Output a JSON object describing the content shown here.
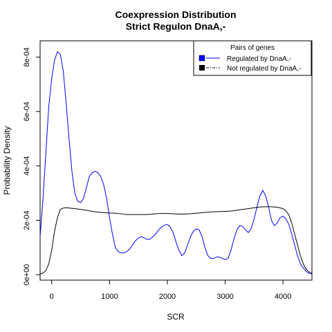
{
  "chart_data": {
    "type": "line",
    "title": "Coexpression Distribution",
    "subtitle": "Strict Regulon DnaA,-",
    "xlabel": "SCR",
    "ylabel": "Probability Density",
    "xlim": [
      -200,
      4500
    ],
    "ylim": [
      -2e-05,
      0.00086
    ],
    "x_ticks": [
      0,
      1000,
      2000,
      3000,
      4000
    ],
    "x_tick_labels": [
      "0",
      "1000",
      "2000",
      "3000",
      "4000"
    ],
    "y_ticks": [
      0,
      0.0002,
      0.0004,
      0.0006,
      0.0008
    ],
    "y_tick_labels": [
      "0e+00",
      "2e-04",
      "4e-04",
      "6e-04",
      "8e-04"
    ],
    "grid": false,
    "legend": {
      "title": "Pairs of genes",
      "position": "top-right",
      "entries": [
        "Regulated by  DnaA,-",
        "Not regulated by  DnaA,-"
      ]
    },
    "series": [
      {
        "name": "Regulated by  DnaA,-",
        "color": "#0000ff",
        "points": [
          [
            -200,
            0.00014
          ],
          [
            -150,
            0.00028
          ],
          [
            -100,
            0.00045
          ],
          [
            -50,
            0.00062
          ],
          [
            0,
            0.00072
          ],
          [
            50,
            0.00079
          ],
          [
            100,
            0.00082
          ],
          [
            150,
            0.00081
          ],
          [
            200,
            0.00075
          ],
          [
            250,
            0.00063
          ],
          [
            300,
            0.0005
          ],
          [
            350,
            0.00038
          ],
          [
            400,
            0.0003
          ],
          [
            450,
            0.00027
          ],
          [
            500,
            0.000265
          ],
          [
            550,
            0.00028
          ],
          [
            600,
            0.00032
          ],
          [
            650,
            0.00036
          ],
          [
            700,
            0.000375
          ],
          [
            750,
            0.00038
          ],
          [
            800,
            0.000375
          ],
          [
            850,
            0.00036
          ],
          [
            900,
            0.00033
          ],
          [
            950,
            0.00028
          ],
          [
            1000,
            0.00021
          ],
          [
            1050,
            0.00015
          ],
          [
            1100,
            0.0001
          ],
          [
            1150,
            8.5e-05
          ],
          [
            1200,
            8e-05
          ],
          [
            1250,
            8e-05
          ],
          [
            1300,
            8.5e-05
          ],
          [
            1350,
            9.5e-05
          ],
          [
            1400,
            0.00011
          ],
          [
            1450,
            0.000125
          ],
          [
            1500,
            0.000135
          ],
          [
            1550,
            0.00014
          ],
          [
            1600,
            0.000135
          ],
          [
            1650,
            0.00013
          ],
          [
            1700,
            0.00013
          ],
          [
            1750,
            0.00014
          ],
          [
            1800,
            0.00015
          ],
          [
            1850,
            0.000165
          ],
          [
            1900,
            0.000175
          ],
          [
            1950,
            0.000182
          ],
          [
            2000,
            0.000185
          ],
          [
            2050,
            0.000175
          ],
          [
            2100,
            0.000155
          ],
          [
            2150,
            0.00012
          ],
          [
            2200,
            9e-05
          ],
          [
            2250,
            7e-05
          ],
          [
            2300,
            8e-05
          ],
          [
            2350,
            0.00011
          ],
          [
            2400,
            0.00014
          ],
          [
            2450,
            0.00016
          ],
          [
            2500,
            0.000168
          ],
          [
            2550,
            0.000165
          ],
          [
            2600,
            0.00014
          ],
          [
            2650,
            0.0001
          ],
          [
            2700,
            7e-05
          ],
          [
            2750,
            6e-05
          ],
          [
            2800,
            6e-05
          ],
          [
            2850,
            6.5e-05
          ],
          [
            2900,
            6.5e-05
          ],
          [
            2950,
            6e-05
          ],
          [
            3000,
            5.5e-05
          ],
          [
            3050,
            6e-05
          ],
          [
            3100,
            9e-05
          ],
          [
            3150,
            0.00013
          ],
          [
            3200,
            0.000165
          ],
          [
            3250,
            0.00018
          ],
          [
            3300,
            0.000178
          ],
          [
            3350,
            0.000165
          ],
          [
            3400,
            0.000155
          ],
          [
            3450,
            0.00017
          ],
          [
            3500,
            0.000205
          ],
          [
            3550,
            0.00025
          ],
          [
            3600,
            0.00029
          ],
          [
            3650,
            0.00031
          ],
          [
            3700,
            0.00029
          ],
          [
            3750,
            0.00025
          ],
          [
            3800,
            0.0002
          ],
          [
            3850,
            0.00018
          ],
          [
            3900,
            0.00019
          ],
          [
            3950,
            0.00021
          ],
          [
            4000,
            0.000215
          ],
          [
            4050,
            0.000205
          ],
          [
            4100,
            0.000185
          ],
          [
            4150,
            0.00015
          ],
          [
            4200,
            0.00011
          ],
          [
            4250,
            7e-05
          ],
          [
            4300,
            4e-05
          ],
          [
            4350,
            2.5e-05
          ],
          [
            4400,
            1.2e-05
          ],
          [
            4450,
            5e-06
          ],
          [
            4500,
            2e-06
          ]
        ]
      },
      {
        "name": "Not regulated by  DnaA,-",
        "color": "#000000",
        "points": [
          [
            -200,
            3e-06
          ],
          [
            -150,
            6e-06
          ],
          [
            -100,
            1.5e-05
          ],
          [
            -50,
            4e-05
          ],
          [
            0,
            9e-05
          ],
          [
            50,
            0.00016
          ],
          [
            100,
            0.00021
          ],
          [
            150,
            0.00024
          ],
          [
            200,
            0.000245
          ],
          [
            250,
            0.000246
          ],
          [
            300,
            0.000245
          ],
          [
            400,
            0.000243
          ],
          [
            500,
            0.00024
          ],
          [
            600,
            0.000237
          ],
          [
            700,
            0.000233
          ],
          [
            800,
            0.00023
          ],
          [
            900,
            0.000228
          ],
          [
            1000,
            0.000227
          ],
          [
            1100,
            0.000226
          ],
          [
            1200,
            0.000224
          ],
          [
            1300,
            0.000221
          ],
          [
            1400,
            0.000221
          ],
          [
            1500,
            0.000221
          ],
          [
            1600,
            0.000221
          ],
          [
            1700,
            0.000222
          ],
          [
            1800,
            0.000224
          ],
          [
            1900,
            0.000225
          ],
          [
            2000,
            0.000225
          ],
          [
            2100,
            0.000224
          ],
          [
            2200,
            0.000223
          ],
          [
            2300,
            0.000223
          ],
          [
            2400,
            0.000224
          ],
          [
            2500,
            0.000226
          ],
          [
            2600,
            0.000228
          ],
          [
            2700,
            0.00023
          ],
          [
            2800,
            0.000231
          ],
          [
            2900,
            0.000232
          ],
          [
            3000,
            0.000233
          ],
          [
            3100,
            0.000234
          ],
          [
            3200,
            0.000237
          ],
          [
            3300,
            0.00024
          ],
          [
            3400,
            0.000243
          ],
          [
            3500,
            0.000246
          ],
          [
            3600,
            0.000249
          ],
          [
            3700,
            0.00025
          ],
          [
            3800,
            0.00025
          ],
          [
            3900,
            0.000248
          ],
          [
            4000,
            0.000243
          ],
          [
            4050,
            0.000235
          ],
          [
            4100,
            0.00022
          ],
          [
            4150,
            0.00019
          ],
          [
            4200,
            0.00015
          ],
          [
            4250,
            0.00011
          ],
          [
            4300,
            7e-05
          ],
          [
            4350,
            4e-05
          ],
          [
            4400,
            2e-05
          ],
          [
            4450,
            1e-05
          ],
          [
            4500,
            5e-06
          ]
        ]
      }
    ]
  }
}
